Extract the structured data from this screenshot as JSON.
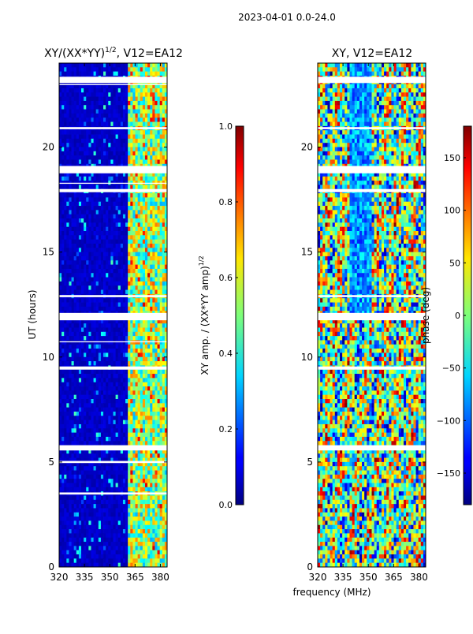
{
  "figure_title": "2023-04-01 0.0-24.0",
  "shared_xlabel": "frequency (MHz)",
  "chart_data": [
    {
      "type": "heatmap",
      "title_main": "XY/(XX*YY)",
      "title_sup": "1/2",
      "title_rest": ", V12=EA12",
      "ylabel": "UT (hours)",
      "xlim": [
        320,
        384
      ],
      "ylim": [
        0,
        24
      ],
      "xticks": [
        320,
        335,
        350,
        365,
        380
      ],
      "yticks": [
        0,
        5,
        10,
        15,
        20
      ],
      "colormap": "jet",
      "colorbar": {
        "label": "XY amp. / (XX*YY amp)",
        "label_sup": "1/2",
        "range": [
          0.0,
          1.0
        ],
        "ticks": [
          "0.0",
          "0.2",
          "0.4",
          "0.6",
          "0.8",
          "1.0"
        ]
      },
      "band_edge_mhz": 361,
      "white_gaps_ut": [
        [
          23.05,
          23.35
        ],
        [
          22.95,
          23.0
        ],
        [
          20.85,
          20.95
        ],
        [
          19.1,
          18.75
        ],
        [
          18.25,
          18.3
        ],
        [
          17.85,
          18.0
        ],
        [
          12.85,
          12.95
        ],
        [
          11.75,
          12.1
        ],
        [
          10.7,
          10.75
        ],
        [
          9.4,
          9.55
        ],
        [
          5.55,
          5.8
        ],
        [
          4.95,
          5.05
        ],
        [
          3.45,
          3.55
        ]
      ]
    },
    {
      "type": "heatmap",
      "title": "XY, V12=EA12",
      "xlim": [
        320,
        384
      ],
      "ylim": [
        0,
        24
      ],
      "xticks": [
        320,
        335,
        350,
        365,
        380
      ],
      "yticks": [
        0,
        5,
        10,
        15,
        20
      ],
      "colormap": "jet",
      "colorbar": {
        "label": "phase (deg)",
        "range": [
          -180,
          180
        ],
        "ticks": [
          "−150",
          "−100",
          "−50",
          "0",
          "50",
          "100",
          "150"
        ]
      },
      "white_gaps_ut": [
        [
          23.05,
          23.35
        ],
        [
          20.85,
          20.95
        ],
        [
          18.75,
          19.1
        ],
        [
          17.85,
          18.0
        ],
        [
          12.85,
          12.95
        ],
        [
          11.75,
          12.1
        ],
        [
          9.4,
          9.55
        ],
        [
          5.55,
          5.8
        ]
      ]
    }
  ]
}
